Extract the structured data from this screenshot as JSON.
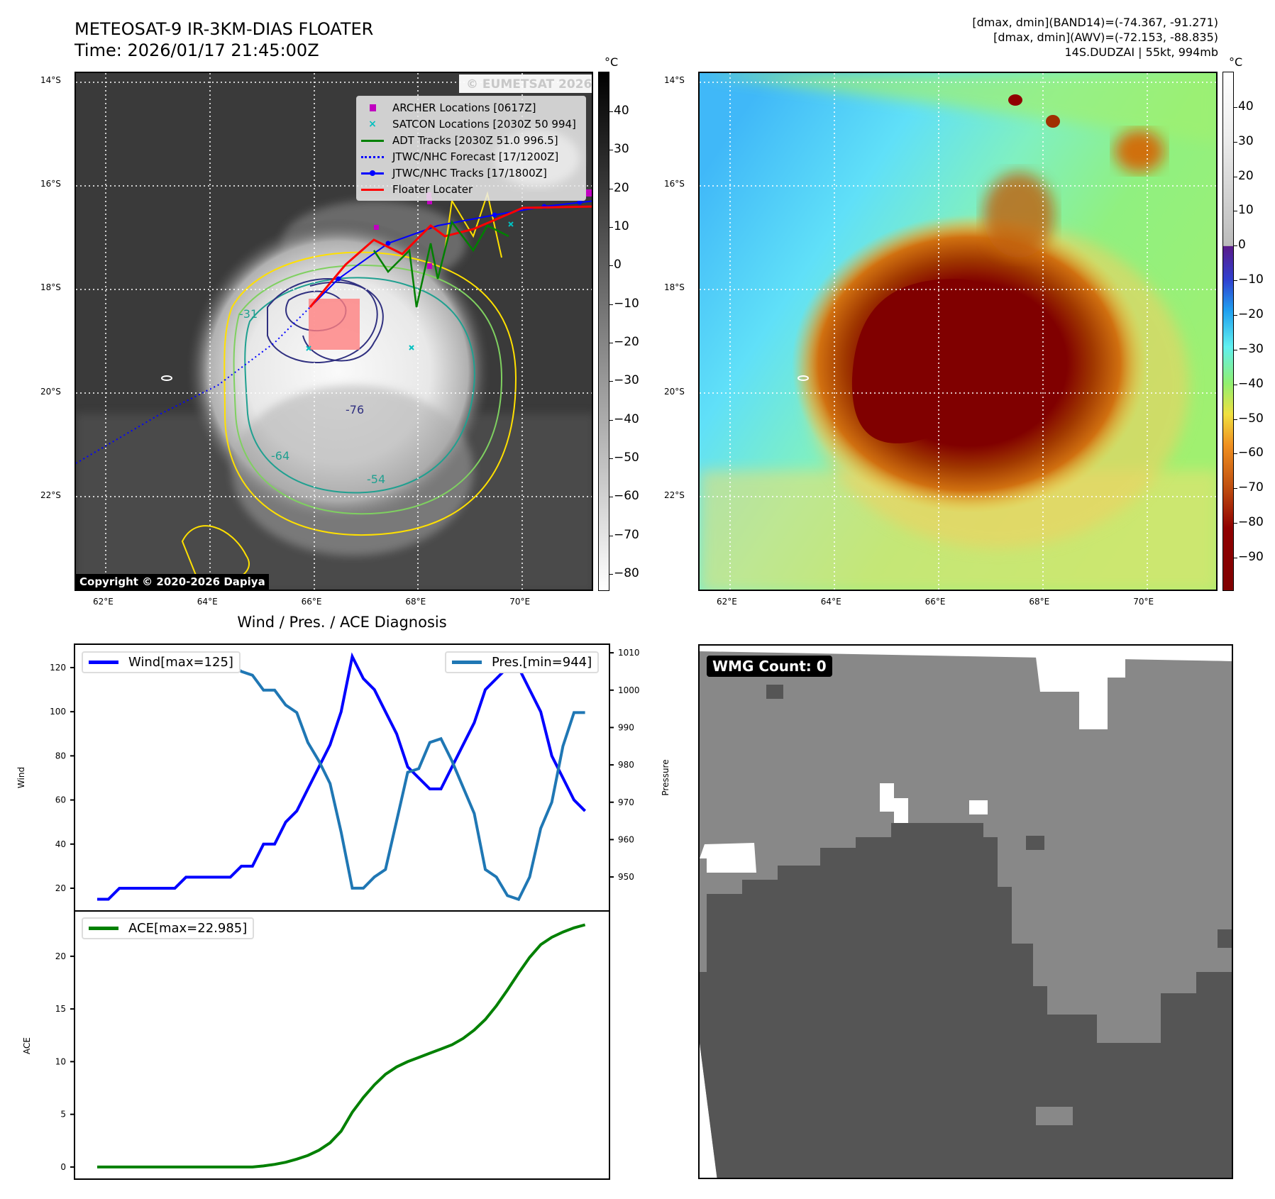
{
  "header": {
    "title_line1": "METEOSAT-9 IR-3KM-DIAS FLOATER",
    "title_line2": "Time: 2026/01/17 21:45:00Z",
    "info_line1": "[dmax, dmin](BAND14)=(-74.367, -91.271)",
    "info_line2": "[dmax, dmin](AWV)=(-72.153, -88.835)",
    "info_line3": "14S.DUDZAI | 55kt, 994mb"
  },
  "ir_map": {
    "unit": "°C",
    "lat_labels": [
      "14°S",
      "16°S",
      "18°S",
      "20°S",
      "22°S"
    ],
    "lon_labels": [
      "62°E",
      "64°E",
      "66°E",
      "68°E",
      "70°E"
    ],
    "watermark": "© EUMETSAT 2026",
    "copyright": "Copyright © 2020-2026 Dapiya",
    "legend": [
      {
        "label": "ARCHER Locations [0617Z]",
        "color": "#c000c0"
      },
      {
        "label": "SATCON Locations [2030Z 50 994]",
        "color": "#00bfbf"
      },
      {
        "label": "ADT Tracks [2030Z 51.0 996.5]",
        "color": "#008000"
      },
      {
        "label": "JTWC/NHC Forecast [17/1200Z]",
        "color": "#0000ff"
      },
      {
        "label": "JTWC/NHC Tracks [17/1800Z]",
        "color": "#0000ff"
      },
      {
        "label": "Floater Locater",
        "color": "#ff0000"
      }
    ],
    "contour_labels": [
      "-31",
      "-54",
      "-64",
      "-76"
    ],
    "colorbar_ticks": [
      40,
      30,
      20,
      10,
      0,
      -10,
      -20,
      -30,
      -40,
      -50,
      -60,
      -70,
      -80
    ],
    "colorbar_range": [
      50.3,
      -84.4
    ]
  },
  "awv_map": {
    "unit": "°C",
    "lat_labels": [
      "14°S",
      "16°S",
      "18°S",
      "20°S",
      "22°S"
    ],
    "lon_labels": [
      "62°E",
      "64°E",
      "66°E",
      "68°E",
      "70°E"
    ],
    "colorbar_ticks": [
      40,
      30,
      20,
      10,
      0,
      -10,
      -20,
      -30,
      -40,
      -50,
      -60,
      -70,
      -80,
      -90
    ],
    "colorbar_range": [
      50.2,
      -99.6
    ]
  },
  "wmg": {
    "label": "WMG Count: 0"
  },
  "colors": {
    "wind": "#0000ff",
    "pres": "#1f77b4",
    "ace": "#008000"
  },
  "chart_data": [
    {
      "type": "line",
      "title": "Wind / Pres. / ACE Diagnosis",
      "xlabel": "",
      "ylabel": "Wind",
      "y2label": "Pressure",
      "ylim": [
        9.7,
        130.6
      ],
      "y2lim": [
        940.9,
        1012.3
      ],
      "xlim": [
        -2.05,
        46.2
      ],
      "yticks": [
        20,
        40,
        60,
        80,
        100,
        120
      ],
      "y2ticks": [
        950,
        960,
        970,
        980,
        990,
        1000,
        1010
      ],
      "legend_placement": "top-left / top-right",
      "series": [
        {
          "name": "Wind[max=125]",
          "axis": "left",
          "values": [
            15,
            15,
            20,
            20,
            20,
            20,
            20,
            20,
            25,
            25,
            25,
            25,
            25,
            30,
            30,
            40,
            40,
            50,
            55,
            65,
            75,
            85,
            100,
            125,
            115,
            110,
            100,
            90,
            75,
            70,
            65,
            65,
            75,
            85,
            95,
            110,
            115,
            120,
            120,
            110,
            100,
            80,
            70,
            60,
            55
          ]
        },
        {
          "name": "Pres.[min=944]",
          "axis": "right",
          "values": [
            1009,
            1009,
            1008,
            1006,
            1006,
            1006,
            1006,
            1006,
            1006,
            1006,
            1007,
            1007,
            1007,
            1005,
            1004,
            1000,
            1000,
            996,
            994,
            986,
            981,
            975,
            962,
            947,
            947,
            950,
            952,
            965,
            978,
            979,
            986,
            987,
            981,
            974,
            967,
            952,
            950,
            945,
            944,
            950,
            963,
            970,
            985,
            994,
            994
          ]
        }
      ]
    },
    {
      "type": "line",
      "title": "",
      "ylabel": "ACE",
      "ylim": [
        -1.15,
        24.3
      ],
      "xlim": [
        -2.05,
        46.2
      ],
      "yticks": [
        0,
        5,
        10,
        15,
        20
      ],
      "series": [
        {
          "name": "ACE[max=22.985]",
          "values": [
            0,
            0,
            0,
            0,
            0,
            0,
            0,
            0,
            0,
            0,
            0,
            0,
            0,
            0,
            0,
            0.1,
            0.25,
            0.45,
            0.75,
            1.1,
            1.6,
            2.3,
            3.4,
            5.2,
            6.6,
            7.8,
            8.8,
            9.5,
            10.0,
            10.4,
            10.8,
            11.2,
            11.6,
            12.2,
            13.0,
            14.0,
            15.3,
            16.8,
            18.4,
            19.9,
            21.1,
            21.8,
            22.3,
            22.7,
            22.985
          ]
        }
      ]
    }
  ]
}
